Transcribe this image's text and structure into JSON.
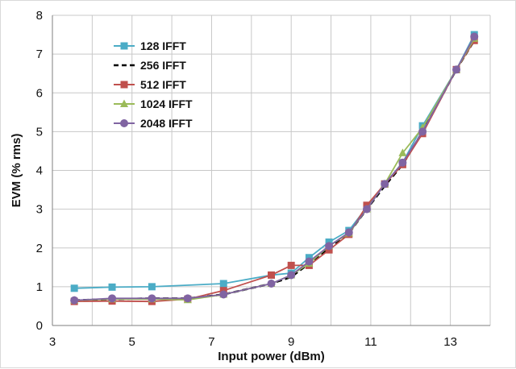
{
  "chart_data": {
    "type": "line",
    "title": "",
    "xlabel": "Input power (dBm)",
    "ylabel": "EVM (% rms)",
    "xlim": [
      3,
      14
    ],
    "ylim": [
      0,
      8
    ],
    "x_ticks": [
      3,
      5,
      7,
      9,
      11,
      13
    ],
    "y_ticks": [
      0,
      1,
      2,
      3,
      4,
      5,
      6,
      7,
      8
    ],
    "grid": true,
    "legend_position": "top-left",
    "series": [
      {
        "name": "128 IFFT",
        "color": "#4bacc6",
        "marker": "square",
        "dash": false,
        "points": [
          [
            3.55,
            0.96
          ],
          [
            4.5,
            0.99
          ],
          [
            5.5,
            1.0
          ],
          [
            7.3,
            1.08
          ],
          [
            8.5,
            1.3
          ],
          [
            9.0,
            1.35
          ],
          [
            9.45,
            1.75
          ],
          [
            9.95,
            2.15
          ],
          [
            10.45,
            2.45
          ],
          [
            10.9,
            3.05
          ],
          [
            11.35,
            3.65
          ],
          [
            11.8,
            4.2
          ],
          [
            12.3,
            5.15
          ],
          [
            13.15,
            6.6
          ],
          [
            13.6,
            7.5
          ]
        ]
      },
      {
        "name": "256 IFFT",
        "color": "#000000",
        "marker": "none",
        "dash": true,
        "points": [
          [
            3.55,
            0.65
          ],
          [
            4.5,
            0.68
          ],
          [
            5.5,
            0.7
          ],
          [
            6.4,
            0.7
          ],
          [
            7.3,
            0.8
          ],
          [
            8.5,
            1.08
          ],
          [
            9.0,
            1.25
          ],
          [
            9.45,
            1.6
          ],
          [
            9.95,
            2.0
          ],
          [
            10.45,
            2.38
          ],
          [
            10.9,
            3.0
          ],
          [
            11.35,
            3.6
          ],
          [
            11.8,
            4.15
          ],
          [
            12.3,
            5.0
          ],
          [
            13.15,
            6.6
          ],
          [
            13.6,
            7.35
          ]
        ]
      },
      {
        "name": "512 IFFT",
        "color": "#c0504d",
        "marker": "square",
        "dash": false,
        "points": [
          [
            3.55,
            0.62
          ],
          [
            4.5,
            0.63
          ],
          [
            5.5,
            0.62
          ],
          [
            6.4,
            0.68
          ],
          [
            7.3,
            0.9
          ],
          [
            8.5,
            1.3
          ],
          [
            9.0,
            1.55
          ],
          [
            9.45,
            1.55
          ],
          [
            9.95,
            1.95
          ],
          [
            10.45,
            2.35
          ],
          [
            10.9,
            3.1
          ],
          [
            11.35,
            3.65
          ],
          [
            11.8,
            4.15
          ],
          [
            12.3,
            4.95
          ],
          [
            13.15,
            6.6
          ],
          [
            13.6,
            7.35
          ]
        ]
      },
      {
        "name": "1024 IFFT",
        "color": "#9bbb59",
        "marker": "triangle",
        "dash": false,
        "points": [
          [
            3.55,
            0.65
          ],
          [
            4.5,
            0.68
          ],
          [
            5.5,
            0.68
          ],
          [
            6.4,
            0.66
          ],
          [
            7.3,
            0.8
          ],
          [
            8.5,
            1.08
          ],
          [
            9.0,
            1.3
          ],
          [
            9.45,
            1.6
          ],
          [
            9.95,
            2.05
          ],
          [
            10.45,
            2.38
          ],
          [
            10.9,
            3.0
          ],
          [
            11.35,
            3.65
          ],
          [
            11.8,
            4.45
          ],
          [
            12.3,
            5.1
          ],
          [
            13.15,
            6.6
          ],
          [
            13.6,
            7.4
          ]
        ]
      },
      {
        "name": "2048 IFFT",
        "color": "#8064a2",
        "marker": "circle",
        "dash": false,
        "points": [
          [
            3.55,
            0.65
          ],
          [
            4.5,
            0.7
          ],
          [
            5.5,
            0.7
          ],
          [
            6.4,
            0.7
          ],
          [
            7.3,
            0.8
          ],
          [
            8.5,
            1.08
          ],
          [
            9.0,
            1.3
          ],
          [
            9.45,
            1.65
          ],
          [
            9.95,
            2.05
          ],
          [
            10.45,
            2.4
          ],
          [
            10.9,
            3.0
          ],
          [
            11.35,
            3.65
          ],
          [
            11.8,
            4.2
          ],
          [
            12.3,
            5.0
          ],
          [
            13.15,
            6.6
          ],
          [
            13.6,
            7.45
          ]
        ]
      }
    ]
  }
}
